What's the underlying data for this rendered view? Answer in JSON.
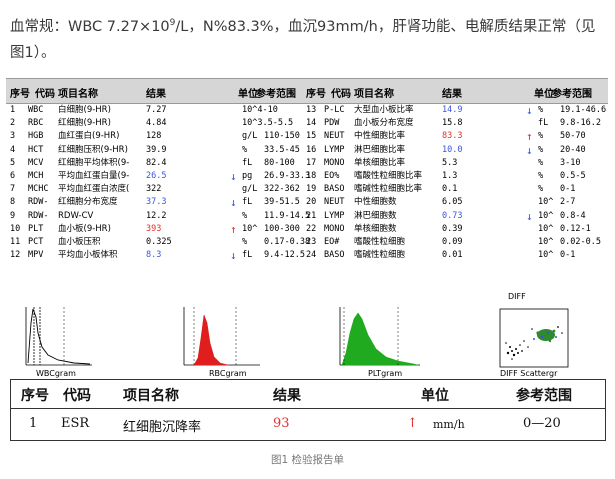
{
  "intro": {
    "line1_prefix": "血常规：WBC 7.27×10",
    "line1_sup": "9",
    "line1_suffix": "/L，N%83.3%，血沉93mm/h，肝肾功能、电解质结果正常（见",
    "line2": "图1）。"
  },
  "lab": {
    "headers": {
      "seq": "序号",
      "code": "代码",
      "name": "项目名称",
      "result": "结果",
      "unit": "单位",
      "ref": "参考范围"
    },
    "left_rows": [
      {
        "no": "1",
        "code": "WBC",
        "name": "白细胞(9-HR)",
        "result": "7.27",
        "flag": "",
        "unit": "10^4-10",
        "ref": "",
        "color": ""
      },
      {
        "no": "2",
        "code": "RBC",
        "name": "红细胞(9-HR)",
        "result": "4.84",
        "flag": "",
        "unit": "10^3.5-5.5",
        "ref": "",
        "color": ""
      },
      {
        "no": "3",
        "code": "HGB",
        "name": "血红蛋白(9-HR)",
        "result": "128",
        "flag": "",
        "unit": "g/L",
        "ref": "110-150",
        "color": ""
      },
      {
        "no": "4",
        "code": "HCT",
        "name": "红细胞压积(9-HR)",
        "result": "39.9",
        "flag": "",
        "unit": "%",
        "ref": "33.5-45",
        "color": ""
      },
      {
        "no": "5",
        "code": "MCV",
        "name": "红细胞平均体积(9-",
        "result": "82.4",
        "flag": "",
        "unit": "fL",
        "ref": "80-100",
        "color": ""
      },
      {
        "no": "6",
        "code": "MCH",
        "name": "平均血红蛋白量(9-",
        "result": "26.5",
        "flag": "down",
        "unit": "pg",
        "ref": "26.9-33.3",
        "color": "blue"
      },
      {
        "no": "7",
        "code": "MCHC",
        "name": "平均血红蛋白浓度(",
        "result": "322",
        "flag": "",
        "unit": "g/L",
        "ref": "322-362",
        "color": ""
      },
      {
        "no": "8",
        "code": "RDW-",
        "name": "红细胞分布宽度",
        "result": "37.3",
        "flag": "down",
        "unit": "fL",
        "ref": "39-51.5",
        "color": "blue"
      },
      {
        "no": "9",
        "code": "RDW-",
        "name": "RDW-CV",
        "result": "12.2",
        "flag": "",
        "unit": "%",
        "ref": "11.9-14.5",
        "color": ""
      },
      {
        "no": "10",
        "code": "PLT",
        "name": "血小板(9-HR)",
        "result": "393",
        "flag": "up",
        "unit": "10^",
        "ref": "100-300",
        "color": "red"
      },
      {
        "no": "11",
        "code": "PCT",
        "name": "血小板压积",
        "result": "0.325",
        "flag": "",
        "unit": "%",
        "ref": "0.17-0.38",
        "color": ""
      },
      {
        "no": "12",
        "code": "MPV",
        "name": "平均血小板体积",
        "result": "8.3",
        "flag": "down",
        "unit": "fL",
        "ref": "9.4-12.5",
        "color": "blue"
      }
    ],
    "right_rows": [
      {
        "no": "13",
        "code": "P-LC",
        "name": "大型血小板比率",
        "result": "14.9",
        "flag": "down",
        "unit": "%",
        "ref": "19.1-46.6",
        "color": "blue"
      },
      {
        "no": "14",
        "code": "PDW",
        "name": "血小板分布宽度",
        "result": "15.8",
        "flag": "",
        "unit": "fL",
        "ref": "9.8-16.2",
        "color": ""
      },
      {
        "no": "15",
        "code": "NEUT",
        "name": "中性细胞比率",
        "result": "83.3",
        "flag": "up",
        "unit": "%",
        "ref": "50-70",
        "color": "red"
      },
      {
        "no": "16",
        "code": "LYMP",
        "name": "淋巴细胞比率",
        "result": "10.0",
        "flag": "down",
        "unit": "%",
        "ref": "20-40",
        "color": "blue"
      },
      {
        "no": "17",
        "code": "MONO",
        "name": "单核细胞比率",
        "result": "5.3",
        "flag": "",
        "unit": "%",
        "ref": "3-10",
        "color": ""
      },
      {
        "no": "18",
        "code": "EO%",
        "name": "嗜酸性粒细胞比率",
        "result": "1.3",
        "flag": "",
        "unit": "%",
        "ref": "0.5-5",
        "color": ""
      },
      {
        "no": "19",
        "code": "BASO",
        "name": "嗜碱性粒细胞比率",
        "result": "0.1",
        "flag": "",
        "unit": "%",
        "ref": "0-1",
        "color": ""
      },
      {
        "no": "20",
        "code": "NEUT",
        "name": "中性细胞数",
        "result": "6.05",
        "flag": "",
        "unit": "10^",
        "ref": "2-7",
        "color": ""
      },
      {
        "no": "21",
        "code": "LYMP",
        "name": "淋巴细胞数",
        "result": "0.73",
        "flag": "down",
        "unit": "10^",
        "ref": "0.8-4",
        "color": "blue"
      },
      {
        "no": "22",
        "code": "MONO",
        "name": "单核细胞数",
        "result": "0.39",
        "flag": "",
        "unit": "10^",
        "ref": "0.12-1",
        "color": ""
      },
      {
        "no": "23",
        "code": "EO#",
        "name": "嗜酸性粒细胞",
        "result": "0.09",
        "flag": "",
        "unit": "10^",
        "ref": "0.02-0.5",
        "color": ""
      },
      {
        "no": "24",
        "code": "BASO",
        "name": "嗜碱性粒细胞",
        "result": "0.01",
        "flag": "",
        "unit": "10^",
        "ref": "0-1",
        "color": ""
      }
    ],
    "graph_labels": {
      "wbc": "WBCgram",
      "rbc": "RBCgram",
      "plt": "PLTgram",
      "diff": "DIFF Scattergr",
      "diff_top": "DIFF"
    },
    "colors": {
      "header_bg": "#d6d6d6",
      "red_curve": "#e01e1e",
      "green_curve": "#1faa1f",
      "blue_val": "#3a55d8",
      "red_val": "#e0302a"
    }
  },
  "esr": {
    "headers": {
      "seq": "序号",
      "code": "代码",
      "name": "项目名称",
      "result": "结果",
      "unit": "单位",
      "ref": "参考范围"
    },
    "row": {
      "no": "1",
      "code": "ESR",
      "name": "红细胞沉降率",
      "result": "93",
      "flag": "↑",
      "unit": "mm/h",
      "ref": "0—20"
    }
  },
  "caption": "图1 检验报告单"
}
